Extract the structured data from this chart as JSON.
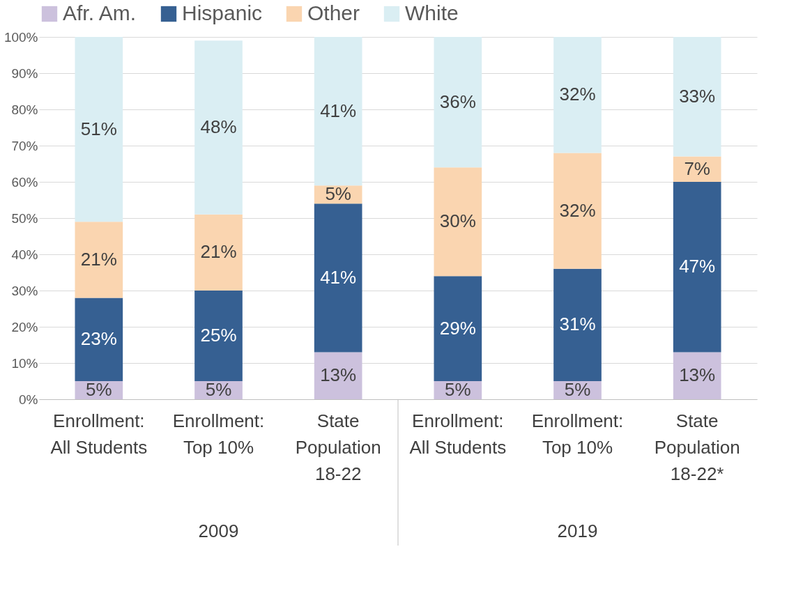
{
  "chart_data": {
    "type": "bar",
    "stacked": true,
    "categories": [
      "Enrollment: All Students",
      "Enrollment: Top 10%",
      "State Population 18-22",
      "Enrollment: All Students",
      "Enrollment: Top 10%",
      "State Population 18-22*"
    ],
    "series": [
      {
        "name": "Afr. Am.",
        "color": "#ccc1dd",
        "values": [
          5,
          5,
          13,
          5,
          5,
          13
        ]
      },
      {
        "name": "Hispanic",
        "color": "#366092",
        "values": [
          23,
          25,
          41,
          29,
          31,
          47
        ]
      },
      {
        "name": "Other",
        "color": "#fad5b0",
        "values": [
          21,
          21,
          5,
          30,
          32,
          7
        ]
      },
      {
        "name": "White",
        "color": "#daeef3",
        "values": [
          51,
          48,
          41,
          36,
          32,
          33
        ]
      }
    ],
    "ylim": [
      0,
      100
    ],
    "yticks": [
      {
        "value": 0,
        "label": "0%"
      },
      {
        "value": 10,
        "label": "10%"
      },
      {
        "value": 20,
        "label": "20%"
      },
      {
        "value": 30,
        "label": "30%"
      },
      {
        "value": 40,
        "label": "40%"
      },
      {
        "value": 50,
        "label": "50%"
      },
      {
        "value": 60,
        "label": "60%"
      },
      {
        "value": 70,
        "label": "70%"
      },
      {
        "value": 80,
        "label": "80%"
      },
      {
        "value": 90,
        "label": "90%"
      },
      {
        "value": 100,
        "label": "100%"
      }
    ],
    "value_labels": [
      [
        "5%",
        "5%",
        "13%",
        "5%",
        "5%",
        "13%"
      ],
      [
        "23%",
        "25%",
        "41%",
        "29%",
        "31%",
        "47%"
      ],
      [
        "21%",
        "21%",
        "5%",
        "30%",
        "32%",
        "7%"
      ],
      [
        "51%",
        "48%",
        "41%",
        "36%",
        "32%",
        "33%"
      ]
    ],
    "annotations": [
      "2009",
      "2019"
    ],
    "grid": "y",
    "legend": "top"
  }
}
